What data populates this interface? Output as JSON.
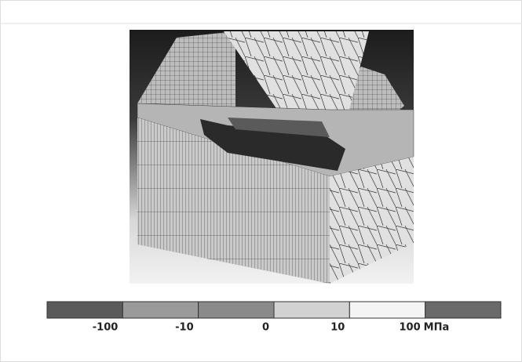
{
  "legend": {
    "segments": [
      {
        "color": "#5a5a5a"
      },
      {
        "color": "#9a9a9a"
      },
      {
        "color": "#8a8a8a"
      },
      {
        "color": "#d2d2d2"
      },
      {
        "color": "#f4f4f4"
      },
      {
        "color": "#6a6a6a"
      }
    ],
    "ticks": [
      "-100",
      "-10",
      "0",
      "10",
      "100"
    ],
    "unit": "МПа"
  }
}
